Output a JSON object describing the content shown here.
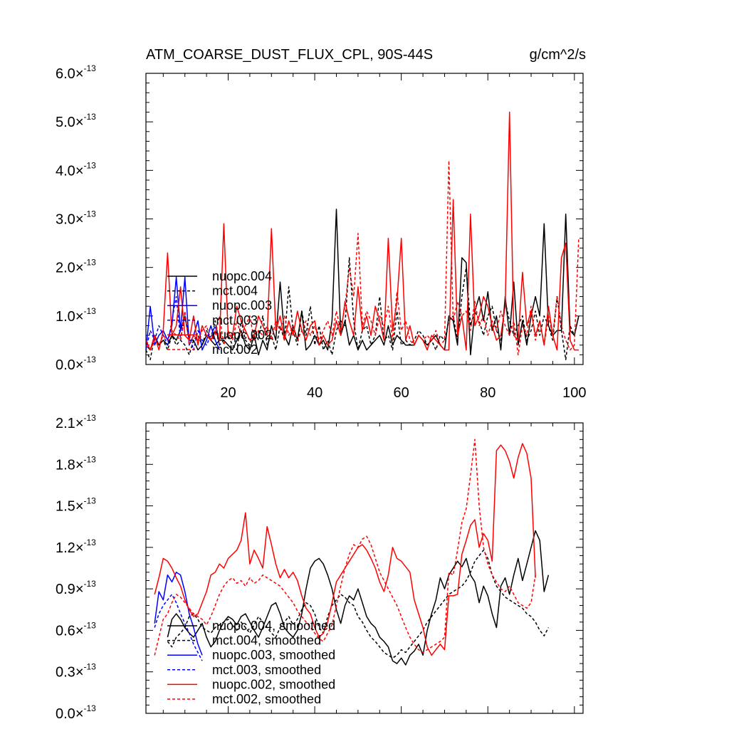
{
  "chart_data": [
    {
      "type": "line",
      "title": "ATM_COARSE_DUST_FLUX_CPL, 90S-44S",
      "units": "g/cm^2/s",
      "xlim": [
        1,
        102
      ],
      "ylim": [
        0,
        6e-13
      ],
      "x_ticks": [
        {
          "v": 20,
          "label": "20"
        },
        {
          "v": 40,
          "label": "40"
        },
        {
          "v": 60,
          "label": "60"
        },
        {
          "v": 80,
          "label": "80"
        },
        {
          "v": 100,
          "label": "100"
        }
      ],
      "y_ticks": [
        {
          "v": 0.0,
          "mant": "0.0",
          "exp": "-13"
        },
        {
          "v": 1e-13,
          "mant": "1.0",
          "exp": "-13"
        },
        {
          "v": 2e-13,
          "mant": "2.0",
          "exp": "-13"
        },
        {
          "v": 3e-13,
          "mant": "3.0",
          "exp": "-13"
        },
        {
          "v": 4e-13,
          "mant": "4.0",
          "exp": "-13"
        },
        {
          "v": 5e-13,
          "mant": "5.0",
          "exp": "-13"
        },
        {
          "v": 6e-13,
          "mant": "6.0",
          "exp": "-13"
        }
      ],
      "times_sign": "×",
      "series": [
        {
          "name": "nuopc.004",
          "color": "#000000",
          "dash": false,
          "x_start": 1,
          "unit": 1e-13,
          "values": [
            0.4,
            0.3,
            0.6,
            0.4,
            0.5,
            0.4,
            0.6,
            0.5,
            0.7,
            1.0,
            0.5,
            0.5,
            0.3,
            0.4,
            0.6,
            0.5,
            0.4,
            0.5,
            0.5,
            0.4,
            0.3,
            0.5,
            0.7,
            0.4,
            0.3,
            0.6,
            0.2,
            0.5,
            0.3,
            0.8,
            0.5,
            1.7,
            0.6,
            0.4,
            0.8,
            0.5,
            1.1,
            0.3,
            0.4,
            0.6,
            0.4,
            0.5,
            0.3,
            0.9,
            3.2,
            0.6,
            0.9,
            0.4,
            0.6,
            0.3,
            0.5,
            0.3,
            0.4,
            0.5,
            0.6,
            0.4,
            0.8,
            0.4,
            0.6,
            0.5,
            0.4,
            0.4,
            0.4,
            0.6,
            0.5,
            0.4,
            0.5,
            0.6,
            0.4,
            0.3,
            1.0,
            0.9,
            0.4,
            2.2,
            2.1,
            0.2,
            1.1,
            1.4,
            0.9,
            1.5,
            0.7,
            1.0,
            0.3,
            1.4,
            0.6,
            1.7,
            0.4,
            0.9,
            0.4,
            1.0,
            1.4,
            1.0,
            2.9,
            0.8,
            0.6,
            0.7,
            0.7,
            3.1,
            0.7,
            0.6,
            1.0
          ]
        },
        {
          "name": "mct.004",
          "color": "#000000",
          "dash": true,
          "x_start": 1,
          "unit": 1e-13,
          "values": [
            0.3,
            0.1,
            0.6,
            0.4,
            0.5,
            0.3,
            0.6,
            0.4,
            0.5,
            0.4,
            0.2,
            0.5,
            0.6,
            0.4,
            0.7,
            0.5,
            0.9,
            0.4,
            0.5,
            0.6,
            0.4,
            0.3,
            0.9,
            0.5,
            0.4,
            0.7,
            0.5,
            1.0,
            0.4,
            0.6,
            0.3,
            0.8,
            0.5,
            1.6,
            0.7,
            0.4,
            1.1,
            0.6,
            1.2,
            0.4,
            0.8,
            0.3,
            0.5,
            0.2,
            0.7,
            0.9,
            0.8,
            2.2,
            0.9,
            0.3,
            0.7,
            0.8,
            0.4,
            0.6,
            1.4,
            0.5,
            0.6,
            0.3,
            1.1,
            0.4,
            0.5,
            0.4,
            0.5,
            0.7,
            0.6,
            0.4,
            0.5,
            0.3,
            0.6,
            0.5,
            0.9,
            1.0,
            0.5,
            1.4,
            2.0,
            0.8,
            1.1,
            0.9,
            0.6,
            1.0,
            1.2,
            0.7,
            0.5,
            1.3,
            0.9,
            0.6,
            0.8,
            1.0,
            0.5,
            0.7,
            1.1,
            0.6,
            1.0,
            0.8,
            0.5,
            1.4,
            0.7,
            0.1,
            0.8,
            0.6,
            1.0
          ]
        },
        {
          "name": "nuopc.003",
          "color": "#0000ff",
          "dash": false,
          "x_start": 1,
          "unit": 1e-13,
          "values": [
            0.3,
            1.2,
            0.4,
            0.6,
            0.7,
            0.5,
            0.8,
            1.8,
            0.7,
            1.8,
            0.4,
            0.6,
            0.9,
            0.3,
            0.5,
            0.8,
            0.5,
            0.3
          ]
        },
        {
          "name": "mct.003",
          "color": "#0000ff",
          "dash": true,
          "x_start": 1,
          "unit": 1e-13,
          "values": [
            0.3,
            0.7,
            0.5,
            0.8,
            0.6,
            0.4,
            0.9,
            1.4,
            0.5,
            1.0,
            0.6,
            0.3,
            0.7,
            0.5,
            0.4,
            0.6,
            0.8,
            0.4
          ]
        },
        {
          "name": "nuopc.002",
          "color": "#ff0000",
          "dash": false,
          "x_start": 1,
          "unit": 1e-13,
          "values": [
            0.5,
            0.3,
            0.6,
            0.3,
            0.7,
            2.3,
            0.6,
            0.8,
            1.6,
            0.6,
            0.5,
            1.0,
            0.4,
            0.8,
            0.6,
            0.5,
            0.7,
            0.5,
            2.9,
            0.6,
            0.6,
            1.2,
            0.9,
            0.7,
            0.5,
            0.6,
            1.0,
            0.8,
            0.6,
            2.8,
            0.7,
            1.0,
            0.5,
            0.9,
            0.6,
            1.1,
            0.7,
            0.5,
            0.8,
            0.9,
            0.4,
            0.6,
            0.4,
            0.5,
            0.9,
            0.6,
            1.3,
            0.9,
            0.6,
            1.6,
            0.7,
            1.0,
            0.6,
            1.2,
            0.9,
            0.5,
            2.6,
            0.7,
            1.3,
            2.6,
            0.5,
            0.8,
            0.4,
            0.6,
            0.5,
            0.3,
            0.6,
            0.5,
            0.4,
            0.3,
            0.3,
            3.4,
            0.6,
            1.0,
            0.3,
            3.1,
            0.8,
            1.0,
            1.4,
            1.2,
            0.8,
            0.5,
            0.6,
            1.2,
            5.2,
            0.6,
            0.5,
            1.9,
            0.8,
            1.1,
            0.6,
            0.9,
            0.4,
            1.2,
            0.6,
            0.3,
            2.2,
            2.5,
            0.5,
            0.3,
            0.3
          ]
        },
        {
          "name": "mct.002",
          "color": "#ff0000",
          "dash": true,
          "x_start": 1,
          "unit": 1e-13,
          "values": [
            0.4,
            0.3,
            0.5,
            0.4,
            0.6,
            0.5,
            0.7,
            0.6,
            0.5,
            1.1,
            0.4,
            0.6,
            0.5,
            0.7,
            0.8,
            0.5,
            0.6,
            1.0,
            0.4,
            0.7,
            0.5,
            0.9,
            0.6,
            0.8,
            1.0,
            0.5,
            0.7,
            0.6,
            0.8,
            0.5,
            0.9,
            0.7,
            1.0,
            0.6,
            0.8,
            0.5,
            0.7,
            0.9,
            0.6,
            0.8,
            0.5,
            0.7,
            0.9,
            0.6,
            1.1,
            0.7,
            1.2,
            2.0,
            1.4,
            2.7,
            0.8,
            1.1,
            0.9,
            0.6,
            1.0,
            0.8,
            1.2,
            0.5,
            1.5,
            0.7,
            0.9,
            0.5,
            0.4,
            0.6,
            0.5,
            0.6,
            0.5,
            0.7,
            0.4,
            0.5,
            4.2,
            0.9,
            1.3,
            1.0,
            1.1,
            0.7,
            1.3,
            0.8,
            1.0,
            0.6,
            0.9,
            0.7,
            1.1,
            0.8,
            0.6,
            0.9,
            0.2,
            0.8,
            0.6,
            1.2,
            0.5,
            0.9,
            0.4,
            1.0,
            0.6,
            1.4,
            0.8,
            0.5,
            0.3,
            0.4,
            2.6
          ]
        }
      ],
      "legend": {
        "placement": "lower-left"
      }
    },
    {
      "type": "line",
      "xlim": [
        1,
        102
      ],
      "ylim": [
        0,
        2.1e-13
      ],
      "x_ticks": [
        {
          "v": 20
        },
        {
          "v": 40
        },
        {
          "v": 60
        },
        {
          "v": 80
        },
        {
          "v": 100
        }
      ],
      "y_ticks": [
        {
          "v": 0.0,
          "mant": "0.0",
          "exp": "-13"
        },
        {
          "v": 3e-14,
          "mant": "0.3",
          "exp": "-13"
        },
        {
          "v": 6e-14,
          "mant": "0.6",
          "exp": "-13"
        },
        {
          "v": 9e-14,
          "mant": "0.9",
          "exp": "-13"
        },
        {
          "v": 1.2e-13,
          "mant": "1.2",
          "exp": "-13"
        },
        {
          "v": 1.5e-13,
          "mant": "1.5",
          "exp": "-13"
        },
        {
          "v": 1.8e-13,
          "mant": "1.8",
          "exp": "-13"
        },
        {
          "v": 2.1e-13,
          "mant": "2.1",
          "exp": "-13"
        }
      ],
      "times_sign": "×",
      "series": [
        {
          "name": "nuopc.004, smoothed",
          "color": "#000000",
          "dash": false,
          "x_start": 6,
          "unit": 1e-13,
          "values": [
            0.55,
            0.68,
            0.72,
            0.68,
            0.62,
            0.58,
            0.55,
            0.6,
            0.65,
            0.55,
            0.48,
            0.52,
            0.6,
            0.66,
            0.7,
            0.68,
            0.64,
            0.7,
            0.72,
            0.66,
            0.6,
            0.55,
            0.62,
            0.7,
            0.78,
            0.8,
            0.72,
            0.62,
            0.58,
            0.55,
            0.6,
            0.72,
            0.9,
            1.05,
            1.1,
            1.12,
            1.08,
            1.0,
            0.9,
            0.75,
            0.65,
            0.78,
            0.85,
            0.82,
            0.9,
            0.8,
            0.7,
            0.65,
            0.62,
            0.55,
            0.52,
            0.48,
            0.38,
            0.36,
            0.4,
            0.35,
            0.42,
            0.45,
            0.5,
            0.42,
            0.6,
            0.72,
            0.82,
            0.98,
            0.9,
            1.0,
            1.05,
            1.1,
            1.06,
            1.12,
            1.0,
            0.95,
            0.8,
            0.92,
            0.85,
            0.72,
            0.62,
            0.92,
            0.98,
            0.86,
            1.0,
            1.12,
            0.96,
            1.08,
            1.2,
            1.32,
            1.25,
            0.88,
            1.0
          ]
        },
        {
          "name": "mct.004, smoothed",
          "color": "#000000",
          "dash": true,
          "x_start": 6,
          "unit": 1e-13,
          "values": [
            0.52,
            0.48,
            0.55,
            0.58,
            0.62,
            0.7,
            0.72,
            0.68,
            0.62,
            0.6,
            0.58,
            0.62,
            0.64,
            0.66,
            0.68,
            0.64,
            0.6,
            0.66,
            0.62,
            0.58,
            0.64,
            0.7,
            0.66,
            0.62,
            0.58,
            0.55,
            0.62,
            0.66,
            0.7,
            0.64,
            0.68,
            0.75,
            0.8,
            0.78,
            0.72,
            0.62,
            0.58,
            0.7,
            0.78,
            0.82,
            0.86,
            0.84,
            0.8,
            0.78,
            0.7,
            0.66,
            0.6,
            0.55,
            0.52,
            0.48,
            0.44,
            0.42,
            0.4,
            0.42,
            0.46,
            0.44,
            0.48,
            0.52,
            0.56,
            0.6,
            0.66,
            0.7,
            0.74,
            0.78,
            0.82,
            0.86,
            0.88,
            0.9,
            0.92,
            0.96,
            1.02,
            1.1,
            1.14,
            1.18,
            1.12,
            1.0,
            0.92,
            0.88,
            0.84,
            0.82,
            0.8,
            0.78,
            0.76,
            0.72,
            0.7,
            0.66,
            0.6,
            0.56,
            0.62
          ]
        },
        {
          "name": "nuopc.003, smoothed",
          "color": "#0000ff",
          "dash": false,
          "x_start": 3,
          "unit": 1e-13,
          "values": [
            0.65,
            0.88,
            0.82,
            1.0,
            0.95,
            1.02,
            1.0,
            0.88,
            0.72,
            0.62,
            0.5,
            0.42
          ]
        },
        {
          "name": "mct.003, smoothed",
          "color": "#0000ff",
          "dash": true,
          "x_start": 3,
          "unit": 1e-13,
          "values": [
            0.62,
            0.72,
            0.78,
            0.82,
            0.86,
            0.8,
            0.72,
            0.65,
            0.58,
            0.5,
            0.44,
            0.38
          ]
        },
        {
          "name": "nuopc.002, smoothed",
          "color": "#ff0000",
          "dash": false,
          "x_start": 3,
          "unit": 1e-13,
          "values": [
            0.86,
            0.98,
            1.12,
            1.1,
            1.05,
            0.98,
            0.92,
            0.82,
            0.75,
            0.7,
            0.72,
            0.8,
            0.88,
            1.0,
            1.02,
            1.08,
            1.05,
            1.12,
            1.15,
            1.18,
            1.25,
            1.45,
            1.08,
            1.18,
            1.12,
            1.05,
            1.35,
            1.22,
            1.08,
            0.98,
            1.04,
            0.98,
            1.02,
            0.96,
            0.85,
            0.76,
            0.72,
            0.62,
            0.55,
            0.58,
            0.66,
            0.8,
            0.95,
            1.0,
            1.05,
            1.1,
            1.15,
            1.2,
            1.22,
            1.18,
            1.12,
            1.05,
            0.95,
            0.88,
            1.0,
            1.2,
            1.12,
            1.1,
            1.06,
            1.02,
            0.82,
            0.72,
            0.62,
            0.48,
            0.42,
            0.46,
            0.5,
            0.46,
            0.85,
            0.85,
            0.86,
            1.15,
            1.25,
            1.36,
            1.4,
            1.2,
            1.3,
            1.25,
            1.1,
            1.9,
            1.94,
            1.9,
            1.82,
            1.7,
            1.85,
            1.95,
            1.88,
            1.7,
            0.98
          ]
        },
        {
          "name": "mct.002, smoothed",
          "color": "#ff0000",
          "dash": true,
          "x_start": 3,
          "unit": 1e-13,
          "values": [
            0.42,
            0.55,
            0.68,
            0.72,
            0.8,
            0.86,
            0.84,
            0.8,
            0.76,
            0.72,
            0.7,
            0.68,
            0.64,
            0.7,
            0.78,
            0.86,
            0.92,
            0.96,
            0.98,
            0.94,
            0.96,
            0.92,
            0.98,
            0.94,
            0.96,
            1.0,
            0.98,
            0.96,
            0.94,
            0.92,
            0.88,
            0.84,
            0.8,
            0.74,
            0.7,
            0.66,
            0.62,
            0.58,
            0.54,
            0.52,
            0.58,
            0.64,
            0.78,
            0.92,
            1.05,
            1.15,
            1.22,
            1.2,
            1.26,
            1.28,
            1.22,
            1.12,
            1.02,
            0.96,
            0.9,
            0.84,
            0.78,
            0.7,
            0.62,
            0.55,
            0.5,
            0.46,
            0.44,
            0.46,
            0.48,
            0.5,
            0.52,
            0.55,
            1.02,
            1.0,
            1.18,
            1.38,
            1.48,
            1.72,
            1.98,
            1.5,
            1.2,
            1.08,
            1.0,
            0.95,
            0.9,
            0.88,
            0.92,
            0.86,
            0.8,
            0.78,
            0.76,
            0.8,
            1.0
          ]
        }
      ],
      "legend": {
        "placement": "lower-left"
      }
    }
  ]
}
